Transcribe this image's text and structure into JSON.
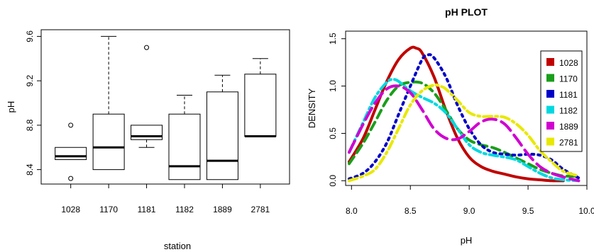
{
  "chart_data": [
    {
      "type": "box",
      "title": "",
      "xlabel": "station",
      "ylabel": "pH",
      "ylim": [
        8.27,
        9.66
      ],
      "yticks": [
        "8.4",
        "8.8",
        "9.2",
        "9.6"
      ],
      "categories": [
        "1028",
        "1170",
        "1181",
        "1182",
        "1889",
        "2781"
      ],
      "boxes": [
        {
          "name": "1028",
          "min": 8.49,
          "q1": 8.49,
          "median": 8.52,
          "q3": 8.6,
          "max": 8.6,
          "outliers": [
            8.8,
            8.32
          ]
        },
        {
          "name": "1170",
          "min": 8.4,
          "q1": 8.4,
          "median": 8.6,
          "q3": 8.9,
          "max": 9.6,
          "outliers": []
        },
        {
          "name": "1181",
          "min": 8.6,
          "q1": 8.67,
          "median": 8.7,
          "q3": 8.8,
          "max": 8.8,
          "outliers": [
            9.5
          ]
        },
        {
          "name": "1182",
          "min": 8.31,
          "q1": 8.31,
          "median": 8.43,
          "q3": 8.9,
          "max": 9.07,
          "outliers": []
        },
        {
          "name": "1889",
          "min": 8.31,
          "q1": 8.31,
          "median": 8.48,
          "q3": 9.1,
          "max": 9.25,
          "outliers": []
        },
        {
          "name": "2781",
          "min": 8.7,
          "q1": 8.7,
          "median": 8.7,
          "q3": 9.26,
          "max": 9.4,
          "outliers": []
        }
      ]
    },
    {
      "type": "line",
      "title": "pH PLOT",
      "xlabel": "pH",
      "ylabel": "DENSITY",
      "xlim": [
        7.95,
        10.0
      ],
      "ylim": [
        -0.05,
        1.58
      ],
      "xticks": [
        "8.0",
        "8.5",
        "9.0",
        "9.5",
        "10.0"
      ],
      "yticks": [
        "0.0",
        "0.5",
        "1.0",
        "1.5"
      ],
      "legend_position": "top-right",
      "series": [
        {
          "name": "1028",
          "color": "#c00000",
          "dash": "solid",
          "x": [
            7.98,
            8.1,
            8.2,
            8.3,
            8.4,
            8.5,
            8.55,
            8.6,
            8.7,
            8.8,
            8.9,
            9.0,
            9.1,
            9.2,
            9.3,
            9.4,
            9.5,
            9.6,
            9.7,
            9.8
          ],
          "y": [
            0.2,
            0.45,
            0.75,
            1.05,
            1.28,
            1.4,
            1.4,
            1.35,
            1.1,
            0.75,
            0.45,
            0.25,
            0.15,
            0.1,
            0.07,
            0.04,
            0.02,
            0.01,
            0.0,
            0.0
          ]
        },
        {
          "name": "1170",
          "color": "#1a9e1a",
          "dash": "dashed",
          "x": [
            7.98,
            8.1,
            8.2,
            8.3,
            8.4,
            8.5,
            8.6,
            8.7,
            8.8,
            8.9,
            9.0,
            9.1,
            9.2,
            9.3,
            9.4,
            9.5,
            9.6,
            9.7,
            9.8,
            9.93
          ],
          "y": [
            0.18,
            0.4,
            0.62,
            0.85,
            1.0,
            1.04,
            1.03,
            0.93,
            0.75,
            0.55,
            0.43,
            0.38,
            0.35,
            0.3,
            0.24,
            0.18,
            0.12,
            0.08,
            0.05,
            0.05
          ]
        },
        {
          "name": "1181",
          "color": "#0000c8",
          "dash": "dotted",
          "x": [
            7.98,
            8.1,
            8.2,
            8.3,
            8.4,
            8.5,
            8.6,
            8.65,
            8.7,
            8.8,
            8.9,
            9.0,
            9.1,
            9.2,
            9.3,
            9.4,
            9.5,
            9.6,
            9.7,
            9.8,
            9.93
          ],
          "y": [
            0.02,
            0.08,
            0.2,
            0.4,
            0.7,
            1.0,
            1.28,
            1.33,
            1.3,
            1.1,
            0.8,
            0.55,
            0.38,
            0.3,
            0.28,
            0.27,
            0.28,
            0.27,
            0.22,
            0.12,
            0.03
          ]
        },
        {
          "name": "1182",
          "color": "#00d8e0",
          "dash": "dashdot",
          "x": [
            7.98,
            8.1,
            8.2,
            8.3,
            8.35,
            8.4,
            8.5,
            8.6,
            8.7,
            8.8,
            8.9,
            9.0,
            9.1,
            9.2,
            9.3,
            9.4,
            9.5,
            9.6,
            9.7,
            9.8,
            9.93
          ],
          "y": [
            0.3,
            0.62,
            0.88,
            1.04,
            1.07,
            1.05,
            0.95,
            0.88,
            0.82,
            0.72,
            0.55,
            0.38,
            0.3,
            0.27,
            0.25,
            0.22,
            0.15,
            0.08,
            0.03,
            0.01,
            0.0
          ]
        },
        {
          "name": "1889",
          "color": "#d000d0",
          "dash": "longdash",
          "x": [
            7.98,
            8.1,
            8.2,
            8.3,
            8.4,
            8.5,
            8.6,
            8.7,
            8.8,
            8.9,
            9.0,
            9.1,
            9.2,
            9.3,
            9.4,
            9.5,
            9.6,
            9.7,
            9.8,
            9.93
          ],
          "y": [
            0.3,
            0.6,
            0.82,
            0.97,
            1.0,
            0.93,
            0.75,
            0.55,
            0.45,
            0.44,
            0.52,
            0.62,
            0.65,
            0.6,
            0.45,
            0.28,
            0.15,
            0.08,
            0.04,
            0.0
          ]
        },
        {
          "name": "2781",
          "color": "#e8e800",
          "dash": "dashdot",
          "x": [
            7.98,
            8.1,
            8.2,
            8.3,
            8.4,
            8.5,
            8.6,
            8.7,
            8.75,
            8.8,
            8.9,
            9.0,
            9.1,
            9.2,
            9.3,
            9.4,
            9.5,
            9.6,
            9.7,
            9.8,
            9.93
          ],
          "y": [
            0.0,
            0.05,
            0.12,
            0.3,
            0.55,
            0.8,
            0.95,
            1.01,
            1.0,
            0.97,
            0.85,
            0.72,
            0.68,
            0.68,
            0.67,
            0.6,
            0.48,
            0.32,
            0.2,
            0.1,
            0.05
          ]
        }
      ]
    }
  ]
}
